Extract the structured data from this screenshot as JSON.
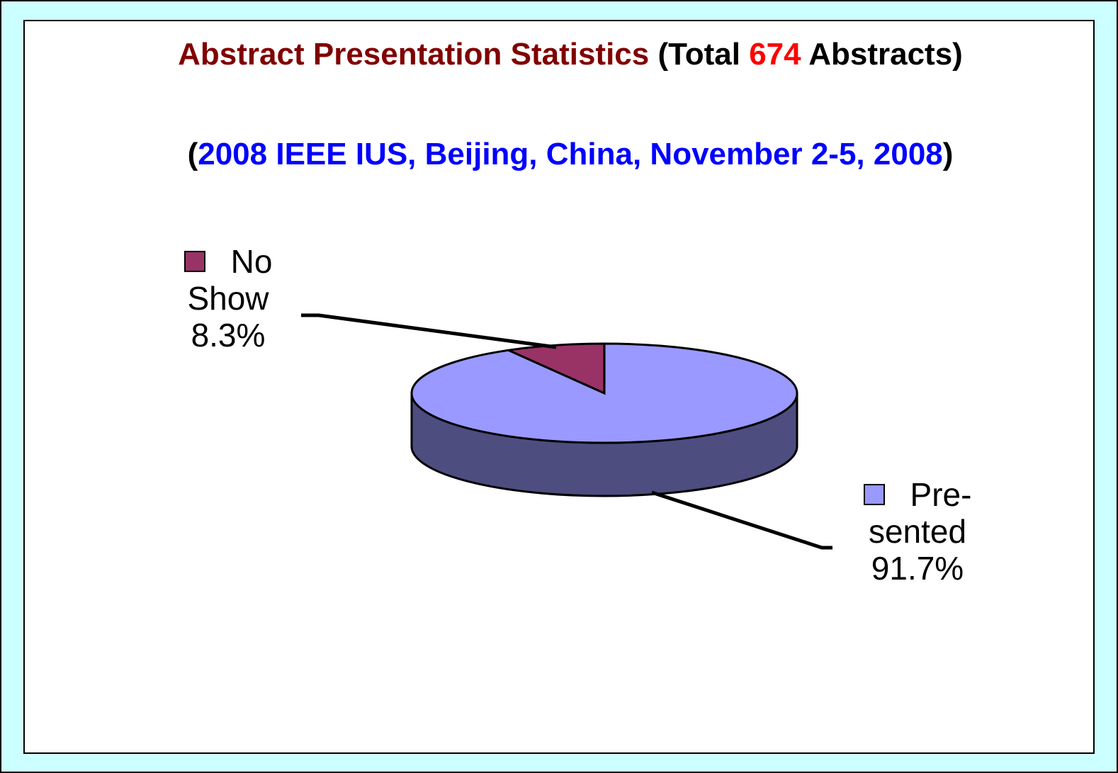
{
  "chart_data": {
    "type": "pie",
    "title": [
      "Abstract Presentation Statistics",
      "(Total",
      "674",
      "Abstracts)"
    ],
    "title_colors": [
      "#800000",
      "#000000",
      "#ff0000",
      "#000000"
    ],
    "subtitle": [
      "(",
      "2008 IEEE IUS, Beijing, China, November 2-5, 2008",
      ")"
    ],
    "subtitle_colors": [
      "#000000",
      "#0000ff",
      "#000000"
    ],
    "categories": [
      "No Show",
      "Pre-sented"
    ],
    "values": [
      8.3,
      91.7
    ],
    "value_labels": [
      "8.3%",
      "91.7%"
    ],
    "colors": [
      "#993366",
      "#9999ff"
    ],
    "three_d": true
  }
}
